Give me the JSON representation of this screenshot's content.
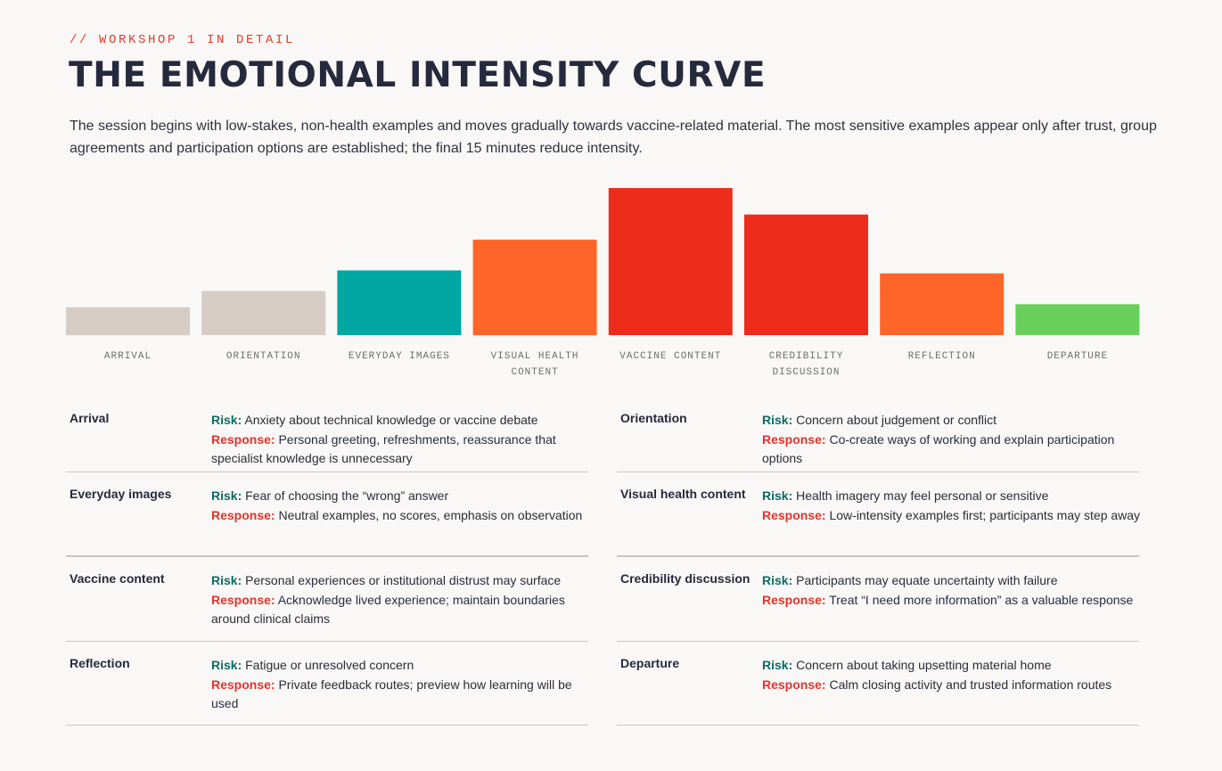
{
  "header": {
    "kicker": "// WORKSHOP 1 IN DETAIL",
    "title": "THE EMOTIONAL INTENSITY CURVE",
    "intro": "The session begins with low-stakes, non-health examples and moves gradually towards vaccine-related material. The most sensitive examples appear only after trust, group agreements and participation options are established; the final 15 minutes reduce intensity."
  },
  "chart_data": {
    "type": "bar",
    "title": "",
    "xlabel": "",
    "ylabel": "",
    "ylim": [
      0,
      100
    ],
    "grid": false,
    "categories": [
      "ARRIVAL",
      "ORIENTATION",
      "EVERYDAY IMAGES",
      "VISUAL HEALTH CONTENT",
      "VACCINE CONTENT",
      "CREDIBILITY DISCUSSION",
      "REFLECTION",
      "DEPARTURE"
    ],
    "values": [
      19,
      30,
      44,
      65,
      100,
      82,
      42,
      21
    ],
    "colors": [
      "#d5cdc5",
      "#d5cdc5",
      "#00a6a2",
      "#ff6528",
      "#ee2c1b",
      "#ee2c1b",
      "#ff6528",
      "#68cf5a"
    ]
  },
  "risk_label": "Risk:",
  "response_label": "Response:",
  "stages": [
    {
      "name": "Arrival",
      "risk": "Anxiety about technical knowledge or vaccine debate",
      "response": "Personal greeting, refreshments, reassurance that specialist knowledge is unnecessary"
    },
    {
      "name": "Orientation",
      "risk": "Concern about judgement or conflict",
      "response": "Co-create ways of working and explain participation options"
    },
    {
      "name": "Everyday images",
      "risk": "Fear of choosing the “wrong” answer",
      "response": "Neutral examples, no scores, emphasis on observation"
    },
    {
      "name": "Visual health content",
      "risk": "Health imagery may feel personal or sensitive",
      "response": "Low-intensity examples first; participants may step away"
    },
    {
      "name": "Vaccine content",
      "risk": "Personal experiences or institutional distrust may surface",
      "response": "Acknowledge lived experience; maintain boundaries around clinical claims"
    },
    {
      "name": "Credibility discussion",
      "risk": "Participants may equate uncertainty with failure",
      "response": "Treat “I need more information” as a valuable response"
    },
    {
      "name": "Reflection",
      "risk": "Fatigue or unresolved concern",
      "response": "Private feedback routes; preview how learning will be used"
    },
    {
      "name": "Departure",
      "risk": "Concern about taking upsetting material home",
      "response": "Calm closing activity and trusted information routes"
    }
  ]
}
